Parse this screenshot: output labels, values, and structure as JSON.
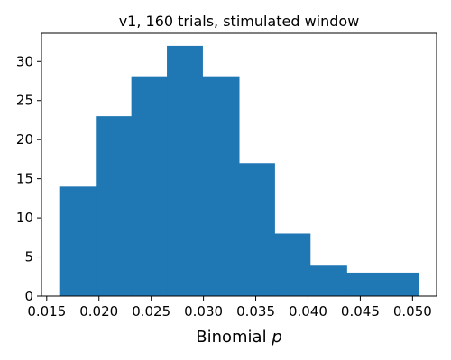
{
  "chart_data": {
    "type": "bar",
    "subtype": "histogram",
    "title": "v1, 160 trials, stimulated window",
    "xlabel_text": "Binomial ",
    "xlabel_var": "p",
    "ylabel": "",
    "bin_edges": [
      0.0162,
      0.0197,
      0.0231,
      0.0265,
      0.0299,
      0.0334,
      0.0368,
      0.0402,
      0.0437,
      0.0471,
      0.0506
    ],
    "counts": [
      14,
      23,
      28,
      32,
      28,
      17,
      8,
      4,
      3,
      3
    ],
    "xlim": [
      0.0145,
      0.0523
    ],
    "ylim": [
      0,
      33.6
    ],
    "xticks": [
      0.015,
      0.02,
      0.025,
      0.03,
      0.035,
      0.04,
      0.045,
      0.05
    ],
    "xtick_labels": [
      "0.015",
      "0.020",
      "0.025",
      "0.030",
      "0.035",
      "0.040",
      "0.045",
      "0.050"
    ],
    "yticks": [
      0,
      5,
      10,
      15,
      20,
      25,
      30
    ],
    "ytick_labels": [
      "0",
      "5",
      "10",
      "15",
      "20",
      "25",
      "30"
    ],
    "bar_color": "#1f77b4",
    "grid": false,
    "legend": "none"
  }
}
